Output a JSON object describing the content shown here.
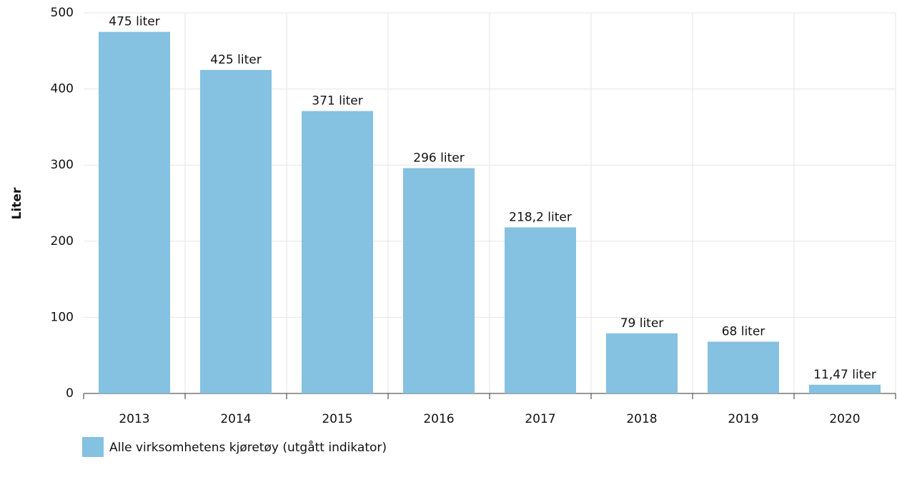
{
  "chart_data": {
    "type": "bar",
    "y_label": "Liter",
    "categories": [
      "2013",
      "2014",
      "2015",
      "2016",
      "2017",
      "2018",
      "2019",
      "2020"
    ],
    "series": [
      {
        "name": "Alle virksomhetens kjøretøy (utgått indikator)",
        "color": "#85c1e0",
        "values": [
          475,
          425,
          371,
          296,
          218.2,
          79,
          68,
          11.47
        ],
        "value_labels": [
          "475 liter",
          "425 liter",
          "371 liter",
          "296 liter",
          "218,2 liter",
          "79 liter",
          "68 liter",
          "11,47 liter"
        ]
      }
    ],
    "ylim": [
      0,
      500
    ],
    "yticks": [
      0,
      100,
      200,
      300,
      400,
      500
    ],
    "grid": true
  }
}
